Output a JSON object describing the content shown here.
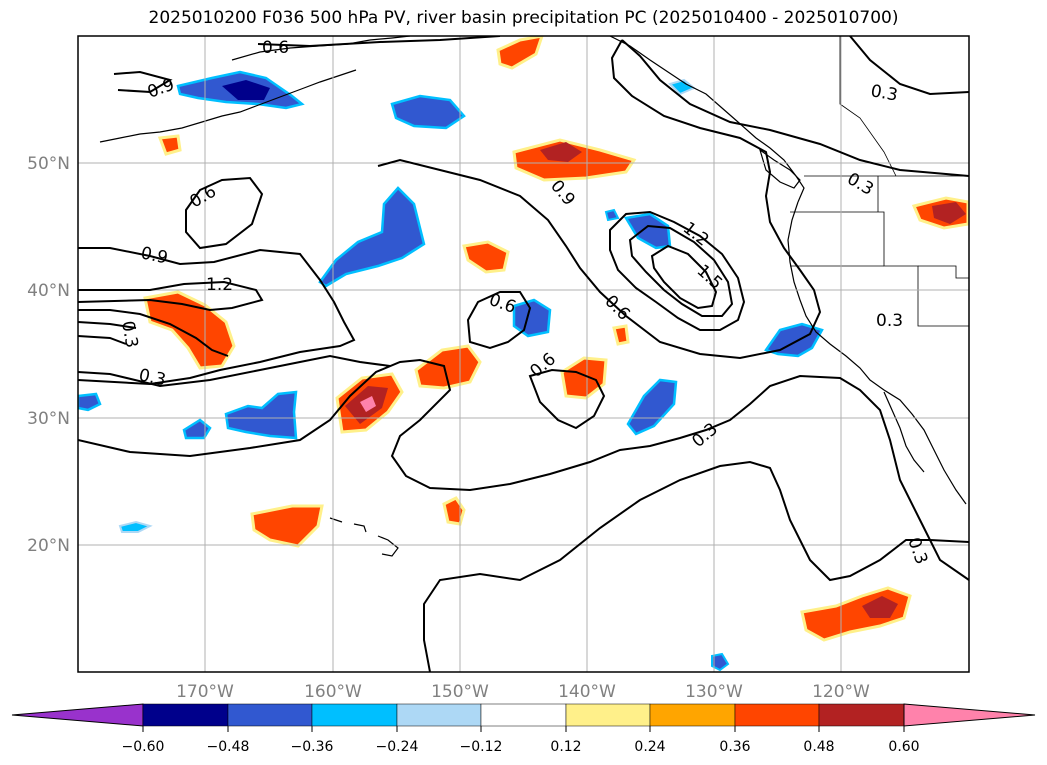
{
  "title": "2025010200 F036 500 hPa PV, river basin precipitation PC (2025010400 - 2025010700)",
  "lat_labels": [
    "50°N",
    "40°N",
    "30°N",
    "20°N"
  ],
  "lon_labels": [
    "170°W",
    "160°W",
    "150°W",
    "140°W",
    "130°W",
    "120°W"
  ],
  "contour_labels": [
    "0.6",
    "0.9",
    "0.3",
    "0.6",
    "0.9",
    "1.2",
    "0.3",
    "0.6",
    "0.9",
    "1.2",
    "1.5",
    "0.6",
    "0.6",
    "0.3",
    "0.3",
    "0.3",
    "0.3",
    "0.3"
  ],
  "colorbar": {
    "colors": [
      "#9932cc",
      "#00008b",
      "#3158d0",
      "#00bfff",
      "#add8f5",
      "#ffffff",
      "#fff08a",
      "#ffa500",
      "#ff4500",
      "#b22222",
      "#ff82ab"
    ],
    "tick_labels": [
      "−0.60",
      "−0.48",
      "−0.36",
      "−0.24",
      "−0.12",
      "0.12",
      "0.24",
      "0.36",
      "0.48",
      "0.60"
    ]
  }
}
